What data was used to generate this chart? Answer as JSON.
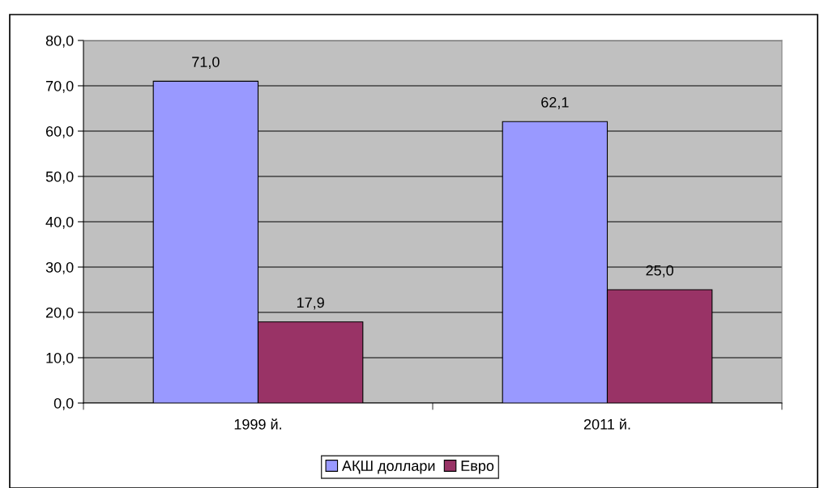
{
  "chart_data": {
    "type": "bar",
    "categories": [
      "1999 й.",
      "2011 й."
    ],
    "series": [
      {
        "name": "АҚШ доллари",
        "color": "#9999ff",
        "values": [
          71.0,
          62.1
        ],
        "value_labels": [
          "71,0",
          "62,1"
        ]
      },
      {
        "name": "Евро",
        "color": "#993366",
        "values": [
          17.9,
          25.0
        ],
        "value_labels": [
          "17,9",
          "25,0"
        ]
      }
    ],
    "ylim": [
      0,
      80
    ],
    "yticks": [
      {
        "value": 0,
        "label": "0,0"
      },
      {
        "value": 10,
        "label": "10,0"
      },
      {
        "value": 20,
        "label": "20,0"
      },
      {
        "value": 30,
        "label": "30,0"
      },
      {
        "value": 40,
        "label": "40,0"
      },
      {
        "value": 50,
        "label": "50,0"
      },
      {
        "value": 60,
        "label": "60,0"
      },
      {
        "value": 70,
        "label": "70,0"
      },
      {
        "value": 80,
        "label": "80,0"
      }
    ],
    "grid": "y",
    "legend": "bottom"
  }
}
